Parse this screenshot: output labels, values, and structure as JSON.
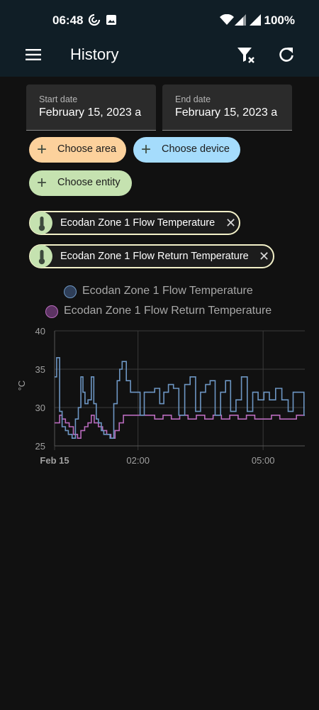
{
  "status_bar": {
    "time": "06:48",
    "battery": "100%",
    "icons": [
      "sync-icon",
      "image-icon",
      "wifi-icon",
      "signal-icon",
      "signal-icon"
    ]
  },
  "app_bar": {
    "title": "History",
    "icons": [
      "menu-icon",
      "filter-remove-icon",
      "refresh-icon"
    ]
  },
  "date_range": {
    "start_label": "Start date",
    "start_value": "February 15, 2023 a",
    "end_label": "End date",
    "end_value": "February 15, 2023 a"
  },
  "target_pickers": {
    "choose_area": "Choose area",
    "choose_device": "Choose device",
    "choose_entity": "Choose entity",
    "add_icon": "plus-icon"
  },
  "selected_entities": [
    {
      "label": "Ecodan Zone 1 Flow Temperature",
      "icon": "thermometer-icon"
    },
    {
      "label": "Ecodan Zone 1 Flow Return Temperature",
      "icon": "thermometer-icon"
    }
  ],
  "colors": {
    "flow": "#6d96c3",
    "flow_legend_fill": "#2e3e58",
    "return": "#b96bbd",
    "return_legend_fill": "#5c3363",
    "area_chip": "#fcd19c",
    "device_chip": "#a5dcfc",
    "entity_chip": "#c5e2b0"
  },
  "chart_data": {
    "type": "line",
    "step": true,
    "ylabel": "°C",
    "ylim": [
      25,
      40
    ],
    "yticks": [
      "40",
      "35",
      "30",
      "25"
    ],
    "xticks": [
      {
        "label": "Feb 15",
        "bold": true
      },
      {
        "label": "02:00",
        "bold": false
      },
      {
        "label": "05:00",
        "bold": false
      }
    ],
    "x_unit": "hours since 00:00 on Feb 15",
    "xlim": [
      0,
      6
    ],
    "grid": true,
    "series": [
      {
        "name": "Ecodan Zone 1 Flow Temperature",
        "x": [
          0,
          0.05,
          0.12,
          0.18,
          0.26,
          0.33,
          0.42,
          0.5,
          0.57,
          0.63,
          0.68,
          0.73,
          0.8,
          0.88,
          0.94,
          1.0,
          1.05,
          1.12,
          1.18,
          1.25,
          1.33,
          1.42,
          1.5,
          1.56,
          1.62,
          1.72,
          1.82,
          1.9,
          1.98,
          2.05,
          2.15,
          2.28,
          2.4,
          2.52,
          2.62,
          2.73,
          2.85,
          2.98,
          3.12,
          3.25,
          3.38,
          3.5,
          3.62,
          3.73,
          3.85,
          3.98,
          4.1,
          4.22,
          4.35,
          4.48,
          4.62,
          4.75,
          4.88,
          5.02,
          5.15,
          5.3,
          5.45,
          5.6,
          5.72,
          5.85,
          5.98
        ],
        "y": [
          34,
          36.5,
          29.5,
          27.5,
          27,
          26.5,
          26,
          28.5,
          30,
          34,
          32,
          30.5,
          31,
          34,
          30.5,
          28.5,
          28,
          27,
          26.5,
          26.5,
          26,
          30.5,
          33.5,
          35,
          36,
          33.5,
          32,
          32,
          32,
          29,
          32,
          32,
          32.5,
          30.5,
          32,
          33,
          32.5,
          29,
          33,
          34,
          29.5,
          32,
          33,
          33.5,
          29,
          32,
          33.5,
          29.5,
          31,
          34,
          29.5,
          32,
          31,
          32,
          31,
          32.5,
          31,
          29.5,
          32,
          32,
          29
        ]
      },
      {
        "name": "Ecodan Zone 1 Flow Return Temperature",
        "x": [
          0,
          0.12,
          0.18,
          0.26,
          0.35,
          0.45,
          0.55,
          0.63,
          0.72,
          0.8,
          0.88,
          0.95,
          1.05,
          1.15,
          1.25,
          1.35,
          1.45,
          1.55,
          1.65,
          1.8,
          2.0,
          2.2,
          2.4,
          2.6,
          2.8,
          3.0,
          3.2,
          3.4,
          3.6,
          3.8,
          4.0,
          4.2,
          4.4,
          4.6,
          4.8,
          5.0,
          5.2,
          5.4,
          5.6,
          5.8,
          5.98
        ],
        "y": [
          28,
          29,
          28.5,
          28,
          27.5,
          26.5,
          26,
          27,
          27.5,
          28,
          29,
          28,
          27.5,
          27,
          26.5,
          26,
          27,
          28,
          29,
          29,
          29,
          29,
          28.5,
          29,
          28.5,
          29,
          28.5,
          29,
          28.5,
          29,
          28.5,
          29,
          28.5,
          29,
          28.5,
          28.5,
          29,
          28.5,
          28.5,
          29,
          29
        ]
      }
    ]
  }
}
